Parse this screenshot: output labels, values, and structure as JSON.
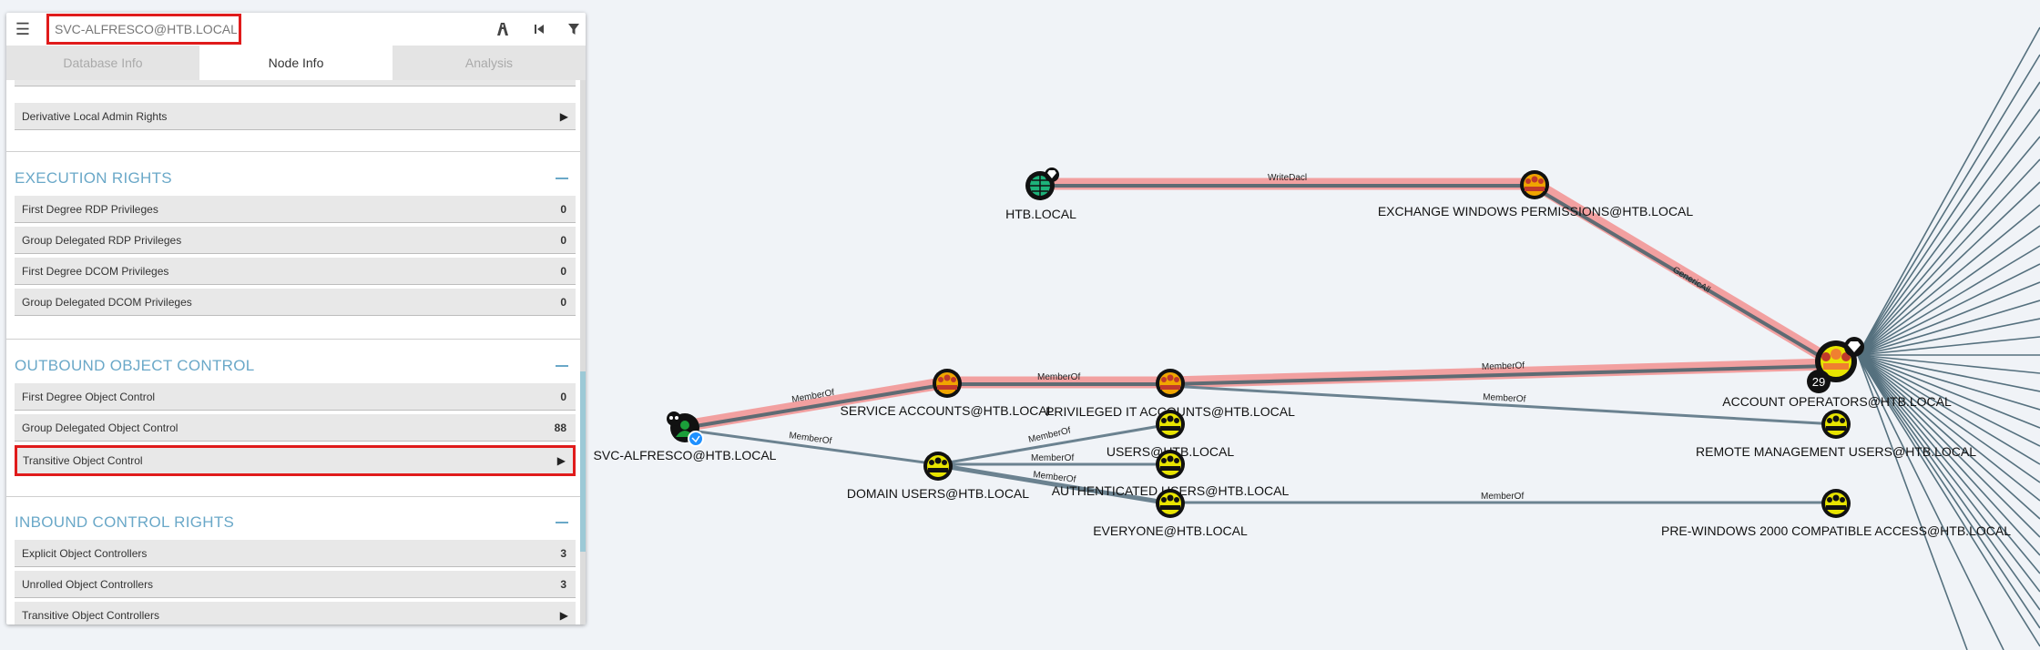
{
  "search": {
    "value": "SVC-ALFRESCO@HTB.LOCAL"
  },
  "tabs": {
    "database_info": "Database Info",
    "node_info": "Node Info",
    "analysis": "Analysis"
  },
  "rows": {
    "derivative_local_admin": {
      "label": "Derivative Local Admin Rights"
    }
  },
  "execution": {
    "title": "EXECUTION RIGHTS",
    "items": [
      {
        "label": "First Degree RDP Privileges",
        "value": "0"
      },
      {
        "label": "Group Delegated RDP Privileges",
        "value": "0"
      },
      {
        "label": "First Degree DCOM Privileges",
        "value": "0"
      },
      {
        "label": "Group Delegated DCOM Privileges",
        "value": "0"
      }
    ]
  },
  "outbound": {
    "title": "OUTBOUND OBJECT CONTROL",
    "items": [
      {
        "label": "First Degree Object Control",
        "value": "0"
      },
      {
        "label": "Group Delegated Object Control",
        "value": "88"
      },
      {
        "label": "Transitive Object Control"
      }
    ]
  },
  "inbound": {
    "title": "INBOUND CONTROL RIGHTS",
    "items": [
      {
        "label": "Explicit Object Controllers",
        "value": "3"
      },
      {
        "label": "Unrolled Object Controllers",
        "value": "3"
      },
      {
        "label": "Transitive Object Controllers"
      }
    ]
  },
  "graph": {
    "nodes": {
      "htb_local": "HTB.LOCAL",
      "exchange_windows_permissions": "EXCHANGE WINDOWS PERMISSIONS@HTB.LOCAL",
      "service_accounts": "SERVICE ACCOUNTS@HTB.LOCAL",
      "privileged_it_accounts": "PRIVILEGED IT ACCOUNTS@HTB.LOCAL",
      "account_operators": "ACCOUNT OPERATORS@HTB.LOCAL",
      "svc_alfresco": "SVC-ALFRESCO@HTB.LOCAL",
      "users": "USERS@HTB.LOCAL",
      "remote_management_users": "REMOTE MANAGEMENT USERS@HTB.LOCAL",
      "domain_users": "DOMAIN USERS@HTB.LOCAL",
      "authenticated_users": "AUTHENTICATED USERS@HTB.LOCAL",
      "everyone": "EVERYONE@HTB.LOCAL",
      "pre_windows_2000": "PRE-WINDOWS 2000 COMPATIBLE ACCESS@HTB.LOCAL"
    },
    "edges": {
      "writedacl": "WriteDacl",
      "genericall": "GenericAll",
      "memberof": "MemberOf"
    },
    "account_operators_count": "29",
    "colors": {
      "path": "#f2a0a0",
      "edge": "#6b8290",
      "group": "#e8e400",
      "highlight": "#e01b1b",
      "accent": "#6aa8c8"
    }
  }
}
